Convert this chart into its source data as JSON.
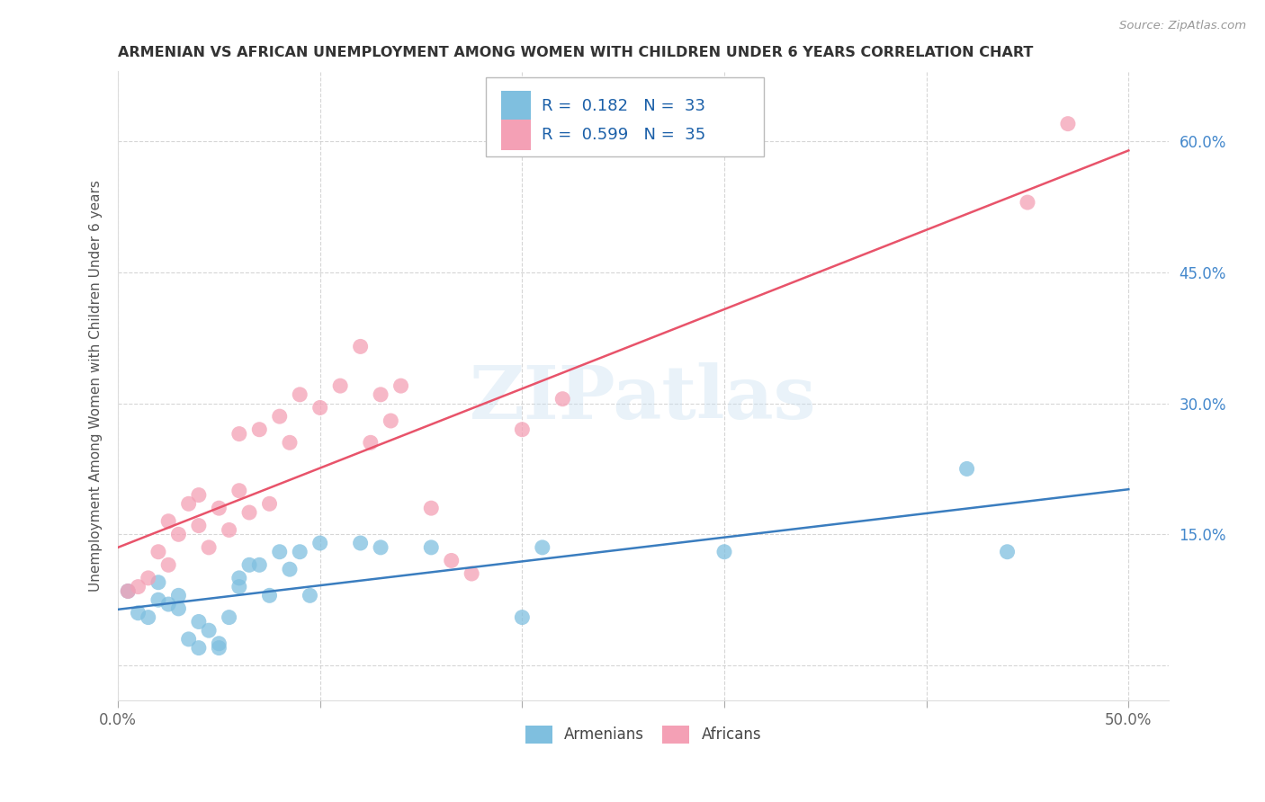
{
  "title": "ARMENIAN VS AFRICAN UNEMPLOYMENT AMONG WOMEN WITH CHILDREN UNDER 6 YEARS CORRELATION CHART",
  "source": "Source: ZipAtlas.com",
  "ylabel": "Unemployment Among Women with Children Under 6 years",
  "xlim": [
    0.0,
    0.52
  ],
  "ylim": [
    -0.04,
    0.68
  ],
  "xticks": [
    0.0,
    0.1,
    0.2,
    0.3,
    0.4,
    0.5
  ],
  "yticks": [
    0.0,
    0.15,
    0.3,
    0.45,
    0.6
  ],
  "ytick_labels": [
    "",
    "15.0%",
    "30.0%",
    "45.0%",
    "60.0%"
  ],
  "xtick_labels": [
    "0.0%",
    "",
    "",
    "",
    "",
    "50.0%"
  ],
  "watermark": "ZIPatlas",
  "R_armenian": 0.182,
  "N_armenian": 33,
  "R_african": 0.599,
  "N_african": 35,
  "armenian_color": "#7fbfdf",
  "african_color": "#f4a0b5",
  "armenian_line_color": "#3a7dbf",
  "african_line_color": "#e8536a",
  "title_color": "#333333",
  "source_color": "#999999",
  "axis_label_color": "#4488cc",
  "background_color": "#ffffff",
  "grid_color": "#cccccc",
  "armenians_x": [
    0.005,
    0.01,
    0.015,
    0.02,
    0.02,
    0.025,
    0.03,
    0.03,
    0.035,
    0.04,
    0.04,
    0.045,
    0.05,
    0.05,
    0.055,
    0.06,
    0.06,
    0.065,
    0.07,
    0.075,
    0.08,
    0.085,
    0.09,
    0.095,
    0.1,
    0.12,
    0.13,
    0.155,
    0.2,
    0.21,
    0.3,
    0.42,
    0.44
  ],
  "armenians_y": [
    0.085,
    0.06,
    0.055,
    0.075,
    0.095,
    0.07,
    0.065,
    0.08,
    0.03,
    0.05,
    0.02,
    0.04,
    0.02,
    0.025,
    0.055,
    0.1,
    0.09,
    0.115,
    0.115,
    0.08,
    0.13,
    0.11,
    0.13,
    0.08,
    0.14,
    0.14,
    0.135,
    0.135,
    0.055,
    0.135,
    0.13,
    0.225,
    0.13
  ],
  "africans_x": [
    0.005,
    0.01,
    0.015,
    0.02,
    0.025,
    0.025,
    0.03,
    0.035,
    0.04,
    0.04,
    0.045,
    0.05,
    0.055,
    0.06,
    0.06,
    0.065,
    0.07,
    0.075,
    0.08,
    0.085,
    0.09,
    0.1,
    0.11,
    0.12,
    0.125,
    0.13,
    0.135,
    0.14,
    0.155,
    0.165,
    0.175,
    0.2,
    0.22,
    0.45,
    0.47
  ],
  "africans_y": [
    0.085,
    0.09,
    0.1,
    0.13,
    0.115,
    0.165,
    0.15,
    0.185,
    0.16,
    0.195,
    0.135,
    0.18,
    0.155,
    0.2,
    0.265,
    0.175,
    0.27,
    0.185,
    0.285,
    0.255,
    0.31,
    0.295,
    0.32,
    0.365,
    0.255,
    0.31,
    0.28,
    0.32,
    0.18,
    0.12,
    0.105,
    0.27,
    0.305,
    0.53,
    0.62
  ],
  "legend_text_color": "#1a5fa8",
  "legend_N_color": "#cc2244"
}
